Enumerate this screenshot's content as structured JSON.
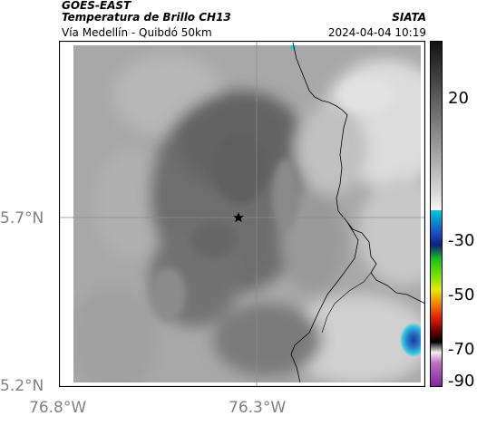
{
  "header": {
    "title_line1": "GOES-EAST",
    "title_line2": "Temperatura de Brillo CH13",
    "title_line3": "Vía Medellín - Quibdó 50km",
    "organization": "SIATA",
    "timestamp": "2024-04-04 10:19"
  },
  "map": {
    "marker": "star-icon",
    "axes": {
      "x_ticks": [
        "76.8°W",
        "76.3°W"
      ],
      "y_ticks": [
        "5.7°N",
        "5.2°N"
      ]
    }
  },
  "colorbar": {
    "ticks": [
      {
        "value": 20,
        "label": "20"
      },
      {
        "value": -30,
        "label": "-30"
      },
      {
        "value": -50,
        "label": "-50"
      },
      {
        "value": -70,
        "label": "-70"
      },
      {
        "value": -90,
        "label": "-90"
      }
    ],
    "colors": {
      "warm_top": "#111111",
      "warm_mid": "#9a9a9a",
      "cold_start": "#00c8e0",
      "blue": "#1030a0",
      "green": "#10c020",
      "yellow": "#e8e800",
      "orange": "#f06000",
      "red": "#c01010",
      "magenta": "#b040b0"
    }
  }
}
